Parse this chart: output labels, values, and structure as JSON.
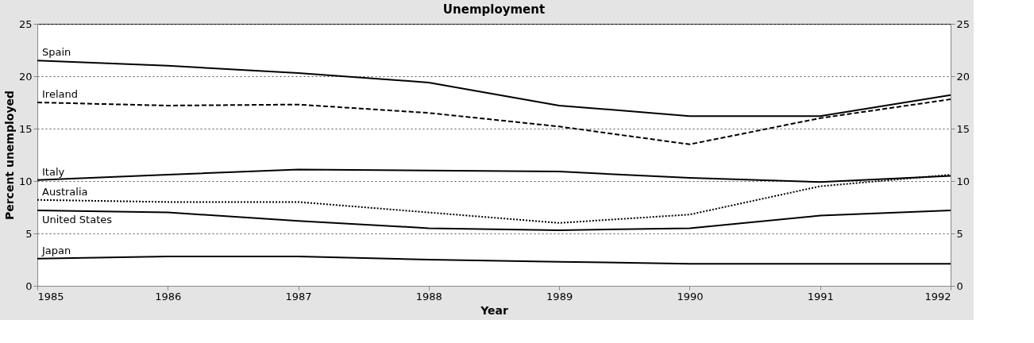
{
  "chart_data": {
    "type": "line",
    "title": "Unemployment",
    "xlabel": "Year",
    "ylabel": "Percent unemployed",
    "x": [
      1985,
      1986,
      1987,
      1988,
      1989,
      1990,
      1991,
      1992
    ],
    "series": [
      {
        "name": "Spain",
        "color": "#000000",
        "line_style": "solid",
        "values": [
          21.5,
          21.0,
          20.3,
          19.4,
          17.2,
          16.2,
          16.2,
          18.2
        ]
      },
      {
        "name": "Ireland",
        "color": "#000000",
        "line_style": "dashed",
        "values": [
          17.5,
          17.2,
          17.3,
          16.5,
          15.2,
          13.5,
          16.0,
          17.8
        ]
      },
      {
        "name": "Italy",
        "color": "#000000",
        "line_style": "solid",
        "values": [
          10.1,
          10.6,
          11.1,
          11.0,
          10.9,
          10.3,
          9.9,
          10.5
        ]
      },
      {
        "name": "Australia",
        "color": "#000000",
        "line_style": "dotted",
        "values": [
          8.2,
          8.0,
          8.0,
          7.0,
          6.0,
          6.8,
          9.5,
          10.6
        ]
      },
      {
        "name": "United States",
        "color": "#000000",
        "line_style": "solid",
        "values": [
          7.2,
          7.0,
          6.2,
          5.5,
          5.3,
          5.5,
          6.7,
          7.2
        ]
      },
      {
        "name": "Japan",
        "color": "#000000",
        "line_style": "solid",
        "values": [
          2.6,
          2.8,
          2.8,
          2.5,
          2.3,
          2.1,
          2.1,
          2.1
        ]
      }
    ],
    "xlim": [
      1985,
      1992
    ],
    "xticks": [
      1985,
      1986,
      1987,
      1988,
      1989,
      1990,
      1991,
      1992
    ],
    "ylim": [
      0,
      25
    ],
    "yticks": [
      0,
      5,
      10,
      15,
      20,
      25
    ],
    "y2lim": [
      0,
      25
    ],
    "y2ticks": [
      0,
      5,
      10,
      15,
      20,
      25
    ],
    "grid": "y",
    "legend": false,
    "marker": "none"
  }
}
